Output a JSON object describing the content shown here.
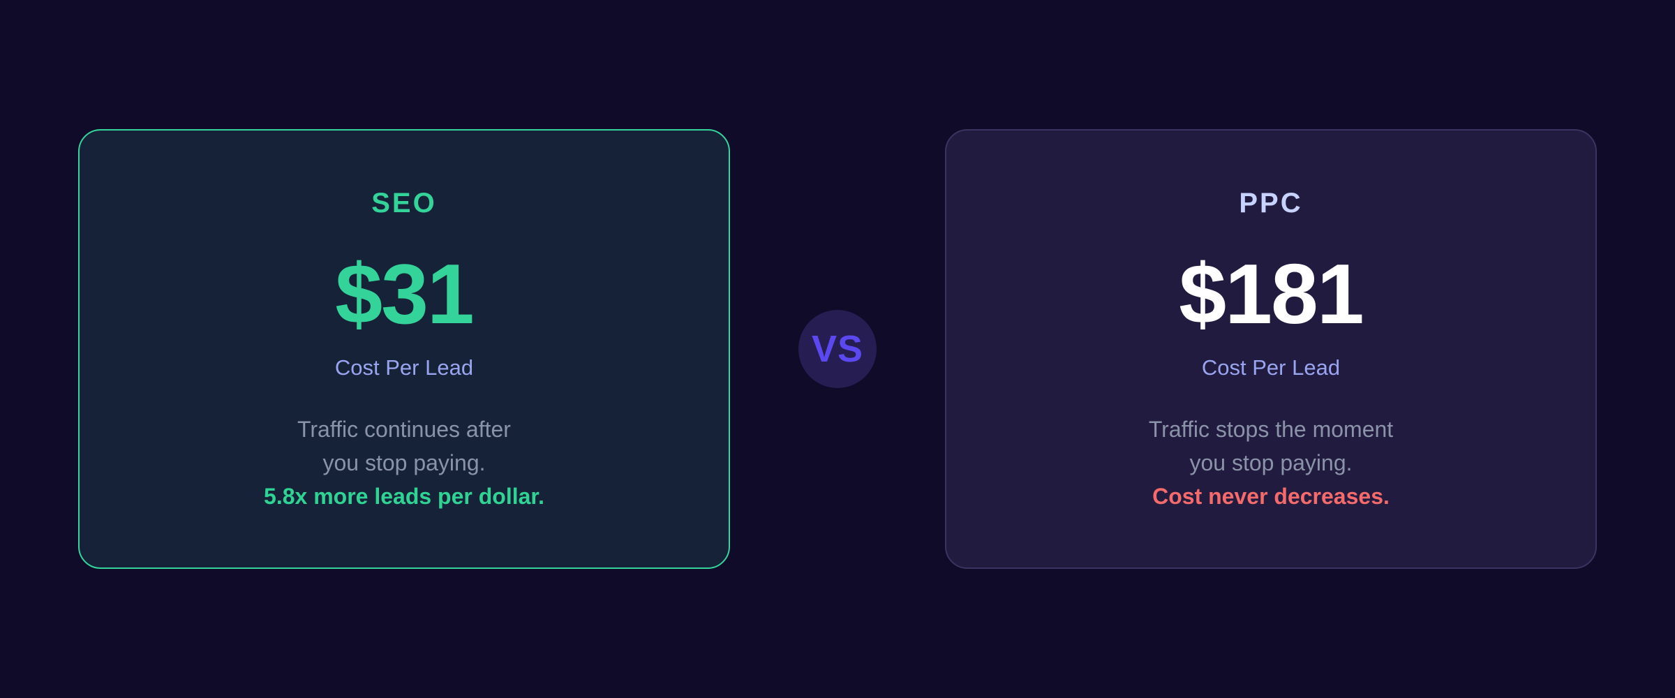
{
  "page": {
    "background_color": "#110b2a"
  },
  "comparison": {
    "seo_card": {
      "title": "SEO",
      "price": "$31",
      "price_label": "Cost Per Lead",
      "description_line1": "Traffic continues after",
      "description_line2": "you stop paying.",
      "highlight": "5.8x more leads per dollar.",
      "accent_color": "#34d399",
      "background_color": "#152238",
      "border_color": "#35d69b"
    },
    "vs_badge": {
      "label": "VS",
      "text_color": "#5b48ee",
      "background_color": "#261e52"
    },
    "ppc_card": {
      "title": "PPC",
      "price": "$181",
      "price_label": "Cost Per Lead",
      "description_line1": "Traffic stops the moment",
      "description_line2": "you stop paying.",
      "highlight": "Cost never decreases.",
      "title_color": "#c7d2fe",
      "price_color": "#ffffff",
      "highlight_color": "#f56a6a",
      "background_color": "#211b40",
      "border_color": "#3a3460"
    },
    "shared": {
      "price_label_color": "#9aa5f0",
      "body_text_color": "#8b93a8"
    }
  }
}
